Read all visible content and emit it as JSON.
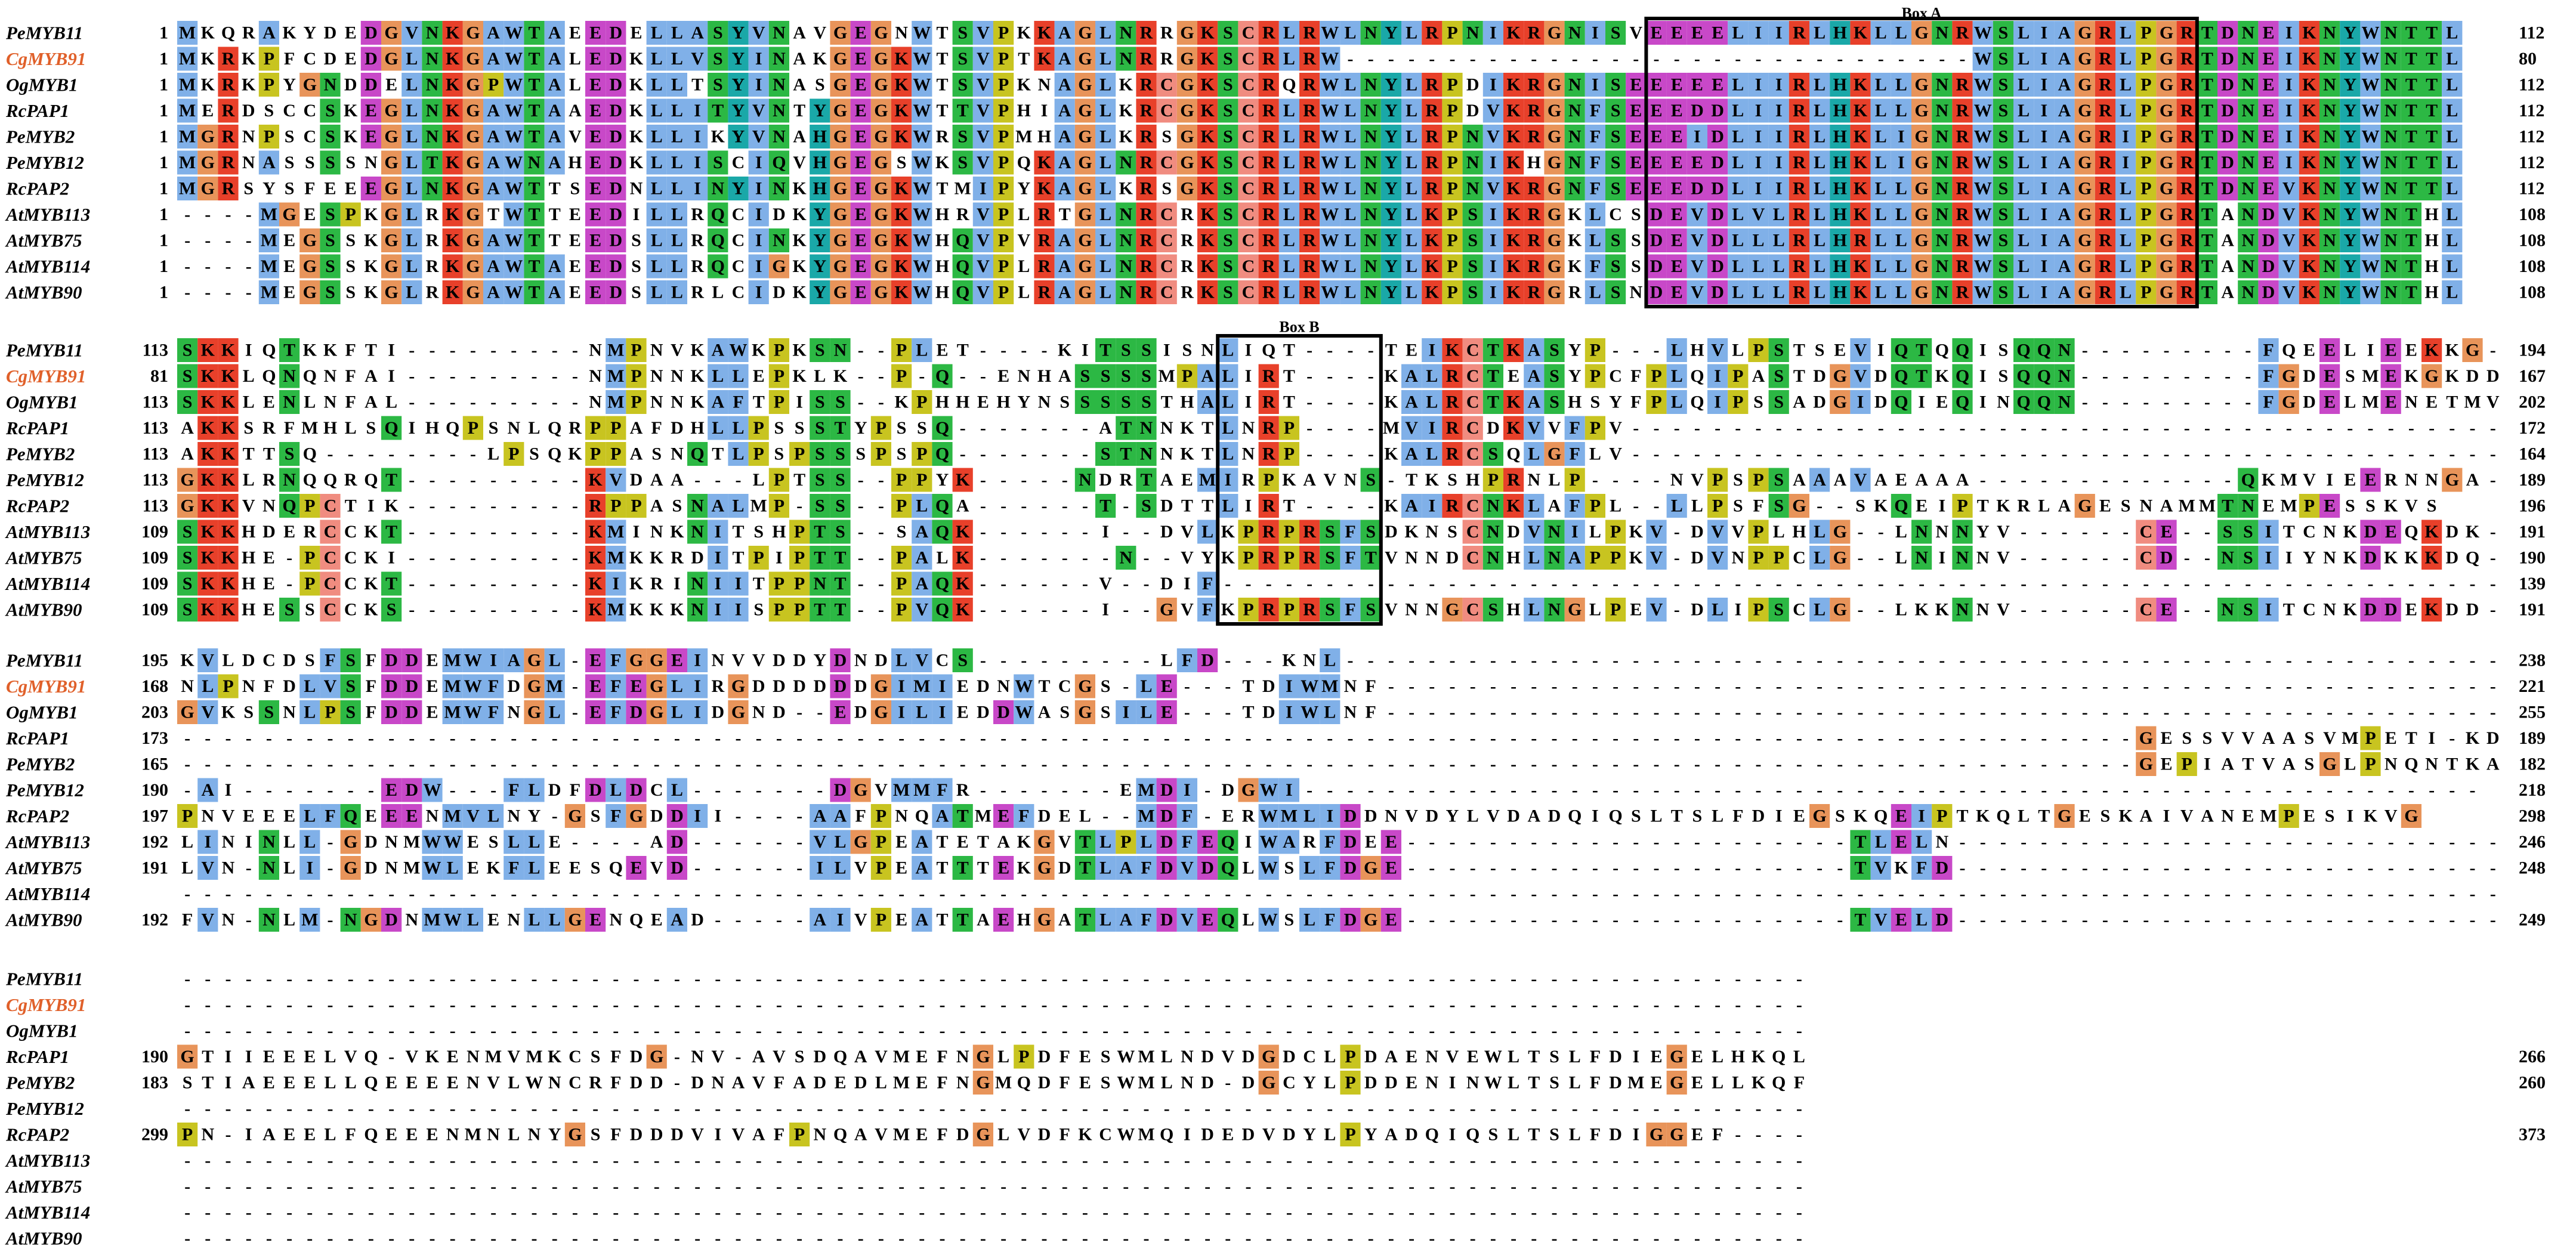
{
  "names": [
    {
      "text": "PeMYB11",
      "color": "#000000"
    },
    {
      "text": "CgMYB91",
      "color": "#e0602a"
    },
    {
      "text": "OgMYB1",
      "color": "#000000"
    },
    {
      "text": "RcPAP1",
      "color": "#000000"
    },
    {
      "text": "PeMYB2",
      "color": "#000000"
    },
    {
      "text": "PeMYB12",
      "color": "#000000"
    },
    {
      "text": "RcPAP2",
      "color": "#000000"
    },
    {
      "text": "AtMYB113",
      "color": "#000000"
    },
    {
      "text": "AtMYB75",
      "color": "#000000"
    },
    {
      "text": "AtMYB114",
      "color": "#000000"
    },
    {
      "text": "AtMYB90",
      "color": "#000000"
    }
  ],
  "residue_colors": {
    "A": "#80b0e8",
    "I": "#80b0e8",
    "L": "#80b0e8",
    "M": "#80b0e8",
    "F": "#80b0e8",
    "W": "#80b0e8",
    "V": "#80b0e8",
    "K": "#e8402a",
    "R": "#e8402a",
    "D": "#c848c8",
    "E": "#c848c8",
    "N": "#2cb844",
    "Q": "#2cb844",
    "S": "#2cb844",
    "T": "#2cb844",
    "G": "#e8945a",
    "P": "#c8c420",
    "H": "#1aa8a8",
    "Y": "#1aa8a8",
    "C": "#f08c80"
  },
  "blocks": [
    {
      "label": "Box A",
      "rows": [
        {
          "start": 1,
          "sequence": "MKQRAKYDEDGVNKGAWTAEEDELLASYVNAVGEGNWTSVPKKAGLNRRGKSCRLRWLNYLRPNIKRGNISVEEEELIIRLHKLLGNRWSLIAGRLPGRTDNEIKNYWNTTL",
          "end": 112
        },
        {
          "start": 1,
          "sequence": "MKRKPFCDEDGLNKGAWTALEDKLLVSYINAKGEGKWTSVPTKAGLNRRGKSCRLRW-------------------------------WSLIAGRLPGRTDNEIKNYWNTTL",
          "end": 80
        },
        {
          "start": 1,
          "sequence": "MKRKPYGNDDELNKGPWTALEDKLLTSYINASGEGKWTSVPKNAGLKRCGKSCRQRWLNYLRPDIKRGNISEEEEELIIRLHKLLGNRWSLIAGRLPGRTDNEIKNYWNTTL",
          "end": 112
        },
        {
          "start": 1,
          "sequence": "MERDSCCSKEGLNKGAWTAAEDKLLITYVNTYGEGKWTTVPHIAGLKRCGKSCRLRWLNYLRPDVKRGNFSEEEDDLIIRLHKLLGNRWSLIAGRLPGRTDNEIKNYWNTTL",
          "end": 112
        },
        {
          "start": 1,
          "sequence": "MGRNPSCSKEGLNKGAWTAVEDKLLIKYVNAHGEGKWRSVPMHAGLKRSGKSCRLRWLNYLRPNVKRGNFSEEEIDLIIRLHKLIGNRWSLIAGRIPGRTDNEIKNYWNTTL",
          "end": 112
        },
        {
          "start": 1,
          "sequence": "MGRNASSSSNGLTKGAWNAHEDKLLISCIQVHGEGSWKSVPQKAGLNRCGKSCRLRWLNYLRPNIKHGNFSEEEEDLIIRLHKLIGNRWSLIAGRIPGRTDNEIKNYWNTTL",
          "end": 112
        },
        {
          "start": 1,
          "sequence": "MGRSYSFEEEGLNKGAWTTSEDNLLINYINKHGEGKWTMIPYKAGLKRSGKSCRLRWLNYLRPNVKRGNFSEEEDDLIIRLHKLLGNRWSLIAGRLPGRTDNEVKNYWNTTL",
          "end": 112
        },
        {
          "start": 1,
          "sequence": "----MGESPKGLRKGTWTTEEDILLRQCIDKYGEGKWHRVPLRTGLNRCRKSCRLRWLNYLKPSIKRGKLCSDEVDLVLRLHKLLGNRWSLIAGRLPGRTANDVKNYWNTHL",
          "end": 108
        },
        {
          "start": 1,
          "sequence": "----MEGSSKGLRKGAWTTEEDSLLRQCINKYGEGKWHQVPVRAGLNRCRKSCRLRWLNYLKPSIKRGKLSSDEVDLLLRLHRLLGNRWSLIAGRLPGRTANDVKNYWNTHL",
          "end": 108
        },
        {
          "start": 1,
          "sequence": "----MEGSSKGLRKGAWTAEEDSLLRQCIGKYGEGKWHQVPLRAGLNRCRKSCRLRWLNYLKPSIKRGKFSSDEVDLLLRLHKLLGNRWSLIAGRLPGRTANDVKNYWNTHL",
          "end": 108
        },
        {
          "start": 1,
          "sequence": "----MEGSSKGLRKGAWTAEEDSLLRLCIDKYGEGKWHQVPLRAGLNRCRKSCRLRWLNYLKPSIKRGRLSNDEVDLLLRLHKLLGNRWSLIAGRLPGRTANDVKNYWNTHL",
          "end": 108
        }
      ]
    },
    {
      "label": "Box B",
      "rows": [
        {
          "start": 113,
          "sequence": "SKKIQTKKFTI---------NMPNVKAWKPKSN--PLET----KITSSISNLIQT----TEIKCTKASYP---LHVLPSTSEVIQTQQISQQN---------FQEELIEEKKG-",
          "end": 194
        },
        {
          "start": 81,
          "sequence": "SKKLQNQNFAI---------NMPNNKLLEPKLK--P-Q--ENHASSSSMPALIRT----KALRCTEASYPCFPLQIPASTDGVDQTKQISQQN---------FGDESMEKGKDD",
          "end": 167
        },
        {
          "start": 113,
          "sequence": "SKKLENLNFAL---------NMPNNKAFTPISS--KPHHEHYNSSSSSTHALIRT----KALRCTKASHSYFPLQIPSSADGIDQIEQINQQN---------FGDELMENETMV",
          "end": 202
        },
        {
          "start": 113,
          "sequence": "AKKSRFMHLSQIHQPSNLQRPPAFDHLLPSSSTYPSSQ-------ATNNKTLNRP----MVIRCDKVVFPV-------------------------------------------",
          "end": 172
        },
        {
          "start": 113,
          "sequence": "AKKTTSQ--------LPSQKPPASNQTLPSPSSSPSPQ-------STNNKTLNRP----KALRCSQLGFLV-------------------------------------------",
          "end": 164
        },
        {
          "start": 113,
          "sequence": "GKKLRNQQRQT---------KVDAA---LPTSS--PPYK-----NDRTAEMIRPKAVNS-TKSHPRNLP----NVPSPSAAAVAEAAA-------------QKMVIEERNNGA-",
          "end": 189
        },
        {
          "start": 113,
          "sequence": "GKKVNQPCTIK---------RPPASNALMP-SS--PLQA------T-SDTTLIRT----KAIRCNKLAFPL--LLPSFSG--SKQEIPTKRLAGESNAMMTNEMPESSKVS",
          "end": 196
        },
        {
          "start": 109,
          "sequence": "SKKHDERCCKT---------KMINKNITSHPTS--SAQK------I--DVLKPRPRSFSDKNSCNDVNILPKV-DVVPLHLG--LNNNYV------CE--SSITCNKDEQKDK-",
          "end": 191
        },
        {
          "start": 109,
          "sequence": "SKKHE-PCCKI---------KMKKRDITPIPTT--PALK-------N--VYKPRPRSFTVNNDCNHLNAPPKV-DVNPPCLG--LNINNV------CD--NSIIYNKDKKKDQ-",
          "end": 190
        },
        {
          "start": 109,
          "sequence": "SKKHE-PCCKT---------KIKRINIITPPNT--PAQK------V--DIF---------------------------------------------------------------",
          "end": 139
        },
        {
          "start": 109,
          "sequence": "SKKHESSCCKS---------KMKKKNIISPPTT--PVQK------I--GVFKPRPRSFSVNNGCSHLNGLPEV-DLIPSCLG--LKKNNV------CE--NSITCNKDDEKDD-",
          "end": 191
        }
      ]
    },
    {
      "rows": [
        {
          "start": 195,
          "sequence": "KVLDCDSFSFDDEMWIAGL-EFGGEINVVDDYDNDLVCS---------LFD---KNL---------------------------------------------------------",
          "end": 238
        },
        {
          "start": 168,
          "sequence": "NLPNFDLVSFDDEMWFDGM-EFEGLIRGDDDDDDGIMIEDNWTCGS-LE---TDIWMNF-------------------------------------------------------",
          "end": 221
        },
        {
          "start": 203,
          "sequence": "GVKSSNLPSFDDEMWFNGL-EFDGLIDGND--EDGILIEDDWASGSILE---TDIWLNF-------------------------------------------------------",
          "end": 255
        },
        {
          "start": 173,
          "sequence": "------------------------------------------------------------------------------------------------GESSVVAASVMPETI-KD",
          "end": 189
        },
        {
          "start": 165,
          "sequence": "------------------------------------------------------------------------------------------------GEPIATVASGLPNQNTKA",
          "end": 182
        },
        {
          "start": 190,
          "sequence": "-AI-------EDW---FLDFDLDCL-------DGVMMFR-------EMDI-DGWI----------------------------------------------------------",
          "end": 218
        },
        {
          "start": 197,
          "sequence": "PNVEEELFQEEENMVLNY-GSFGDDII----AAFPNQATMEFDEL--MDF-ERWMLIDDNVDYLVDADQIQSLTSLFDIEGSKQEIPTKQLTGESKAIVANEMPESIKVG",
          "end": 298
        },
        {
          "start": 192,
          "sequence": "LININLL-GDNMWWESLLE----AD------VLGPEATETAKGVTLPLDFEQIWARFDEE----------------------TLELN---------------------------",
          "end": 246
        },
        {
          "start": 191,
          "sequence": "LVN-NLI-GDNMWLEKFLEESQEVD------ILVPEATTTEKGDTLAFDVDQLWSLFDGE----------------------TVKFD---------------------------",
          "end": 248
        },
        {
          "start": null,
          "sequence": "------------------------------------------------------------------------------------------------------------------",
          "end": null
        },
        {
          "start": 192,
          "sequence": "FVN-NLM-NGDNMWLENLLGENQEAD-----AIVPEATTAEHGATLAFDVEQLWSLFDGE----------------------TVELD---------------------------",
          "end": 249
        }
      ]
    },
    {
      "rows": [
        {
          "start": null,
          "sequence": "--------------------------------------------------------------------------------",
          "end": null
        },
        {
          "start": null,
          "sequence": "--------------------------------------------------------------------------------",
          "end": null
        },
        {
          "start": null,
          "sequence": "--------------------------------------------------------------------------------",
          "end": null
        },
        {
          "start": 190,
          "sequence": "GTIIEEELVQ-VKENMVMKCSFDG-NV-AVSDQAVMEFNGLPDFESWMLNDVDGDCLPDAENVEWLTSLFDIEGELHKQL",
          "end": 266
        },
        {
          "start": 183,
          "sequence": "STIAEEELLQEEEENVLWNCRFDD-DNAVFADEDLMEFNGMQDFESWMLND-DGCYLPDDENINWLTSLFDMEGELLKQF",
          "end": 260
        },
        {
          "start": null,
          "sequence": "--------------------------------------------------------------------------------",
          "end": null
        },
        {
          "start": 299,
          "sequence": "PN-IAEELFQEEENMNLNYGSFDDDVIVAFPNQAVMEFDGLVDFKCWMQIDEDVDYLPYADQIQSLTSLFDIGGEF----",
          "end": 373
        },
        {
          "start": null,
          "sequence": "--------------------------------------------------------------------------------",
          "end": null
        },
        {
          "start": null,
          "sequence": "--------------------------------------------------------------------------------",
          "end": null
        },
        {
          "start": null,
          "sequence": "--------------------------------------------------------------------------------",
          "end": null
        },
        {
          "start": null,
          "sequence": "--------------------------------------------------------------------------------",
          "end": null
        }
      ]
    }
  ]
}
